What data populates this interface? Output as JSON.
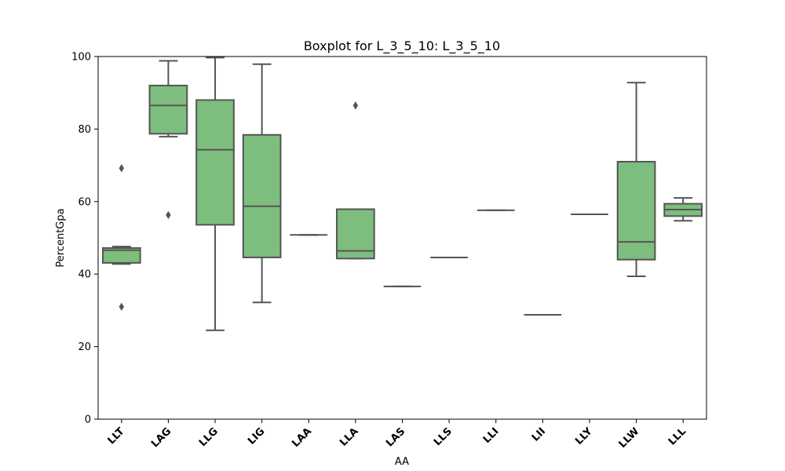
{
  "chart_data": {
    "type": "box",
    "title": "Boxplot for L_3_5_10: L_3_5_10",
    "xlabel": "AA",
    "ylabel": "PercentGpa",
    "ylim": [
      0,
      100
    ],
    "yticks": [
      0,
      20,
      40,
      60,
      80,
      100
    ],
    "grid": false,
    "box_color": "#7dbd7d",
    "line_color": "#555555",
    "categories": [
      "LLT",
      "LAG",
      "LLG",
      "LIG",
      "LAA",
      "LLA",
      "LAS",
      "LLS",
      "LLI",
      "LII",
      "LLY",
      "LLW",
      "LLL"
    ],
    "boxes": [
      {
        "category": "LLT",
        "whislo": 42.8,
        "q1": 43.1,
        "median": 46.6,
        "q3": 47.2,
        "whishi": 47.6,
        "fliers": [
          69.2,
          31.0
        ]
      },
      {
        "category": "LAG",
        "whislo": 77.9,
        "q1": 78.7,
        "median": 86.5,
        "q3": 92.0,
        "whishi": 98.8,
        "fliers": [
          56.3
        ]
      },
      {
        "category": "LLG",
        "whislo": 24.5,
        "q1": 53.6,
        "median": 74.3,
        "q3": 88.0,
        "whishi": 99.7,
        "fliers": []
      },
      {
        "category": "LIG",
        "whislo": 32.2,
        "q1": 44.6,
        "median": 58.7,
        "q3": 78.4,
        "whishi": 97.9,
        "fliers": []
      },
      {
        "category": "LAA",
        "whislo": 50.8,
        "q1": 50.8,
        "median": 50.8,
        "q3": 50.8,
        "whishi": 50.8,
        "fliers": []
      },
      {
        "category": "LLA",
        "whislo": 44.3,
        "q1": 44.3,
        "median": 46.4,
        "q3": 57.9,
        "whishi": 57.9,
        "fliers": [
          86.5
        ]
      },
      {
        "category": "LAS",
        "whislo": 36.6,
        "q1": 36.6,
        "median": 36.6,
        "q3": 36.6,
        "whishi": 36.6,
        "fliers": []
      },
      {
        "category": "LLS",
        "whislo": 44.6,
        "q1": 44.6,
        "median": 44.6,
        "q3": 44.6,
        "whishi": 44.6,
        "fliers": []
      },
      {
        "category": "LLI",
        "whislo": 57.6,
        "q1": 57.6,
        "median": 57.6,
        "q3": 57.6,
        "whishi": 57.6,
        "fliers": []
      },
      {
        "category": "LII",
        "whislo": 28.8,
        "q1": 28.8,
        "median": 28.8,
        "q3": 28.8,
        "whishi": 28.8,
        "fliers": []
      },
      {
        "category": "LLY",
        "whislo": 56.5,
        "q1": 56.5,
        "median": 56.5,
        "q3": 56.5,
        "whishi": 56.5,
        "fliers": []
      },
      {
        "category": "LLW",
        "whislo": 39.4,
        "q1": 44.0,
        "median": 48.9,
        "q3": 71.0,
        "whishi": 92.8,
        "fliers": []
      },
      {
        "category": "LLL",
        "whislo": 54.7,
        "q1": 56.0,
        "median": 57.8,
        "q3": 59.4,
        "whishi": 61.0,
        "fliers": []
      }
    ]
  }
}
